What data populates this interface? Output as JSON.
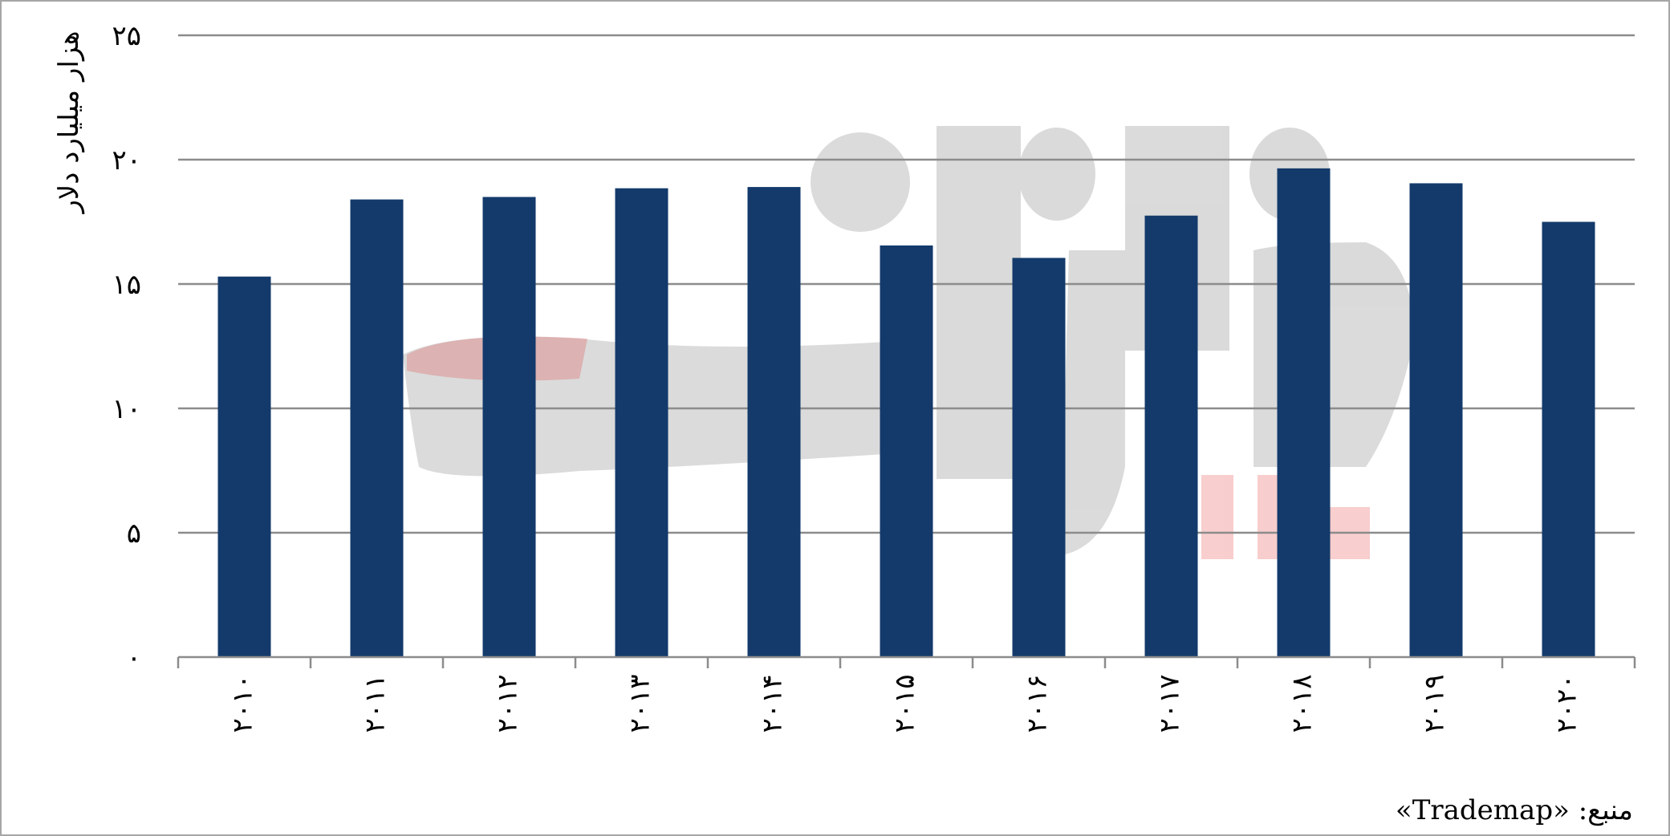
{
  "chart_data": {
    "type": "bar",
    "categories": [
      "۲۰۱۰",
      "۲۰۱۱",
      "۲۰۱۲",
      "۲۰۱۳",
      "۲۰۱۴",
      "۲۰۱۵",
      "۲۰۱۶",
      "۲۰۱۷",
      "۲۰۱۸",
      "۲۰۱۹",
      "۲۰۲۰"
    ],
    "values": [
      15.3,
      18.4,
      18.5,
      18.85,
      18.9,
      16.55,
      16.05,
      17.75,
      19.65,
      19.05,
      17.5
    ],
    "ylabel": "هزار میلیارد دلار",
    "xlabel": "",
    "ylim": [
      0,
      25
    ],
    "yticks": [
      0,
      5,
      10,
      15,
      20,
      25
    ],
    "ytick_labels": [
      "۰",
      "۵",
      "۱۰",
      "۱۵",
      "۲۰",
      "۲۵"
    ],
    "grid": true,
    "bar_color": "#133a6b",
    "grid_color": "#8c8c8c",
    "source_note": "منبع: «Trademap»"
  },
  "watermark": {
    "present": true,
    "text": "اقتصاد"
  }
}
